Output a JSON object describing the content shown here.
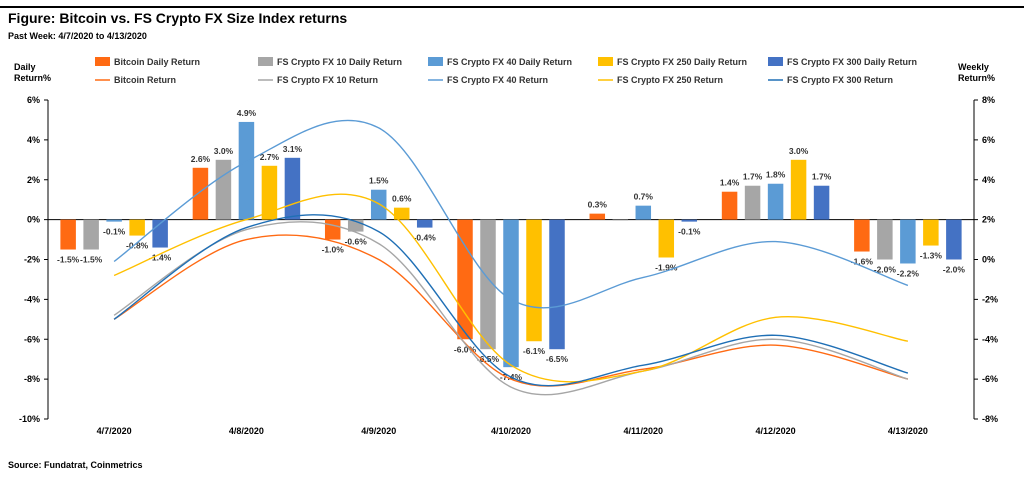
{
  "header": {
    "title": "Figure: Bitcoin vs. FS Crypto FX Size Index returns",
    "subtitle": "Past Week: 4/7/2020 to 4/13/2020"
  },
  "footer": {
    "source": "Source: Fundatrat, Coinmetrics"
  },
  "chart_data": {
    "type": "bar",
    "categories": [
      "4/7/2020",
      "4/8/2020",
      "4/9/2020",
      "4/10/2020",
      "4/11/2020",
      "4/12/2020",
      "4/13/2020"
    ],
    "ylabel_left_line1": "Daily",
    "ylabel_left_line2": "Return%",
    "ylabel_right_line1": "Weekly",
    "ylabel_right_line2": "Return%",
    "ylim_left": [
      -10,
      6
    ],
    "ylim_right": [
      -8,
      8
    ],
    "left_ticks": [
      "6%",
      "4%",
      "2%",
      "0%",
      "-2%",
      "-4%",
      "-6%",
      "-8%",
      "-10%"
    ],
    "right_ticks": [
      "8%",
      "6%",
      "4%",
      "2%",
      "0%",
      "-2%",
      "-4%",
      "-6%",
      "-8%"
    ],
    "grid": false,
    "legend_position": "top",
    "series": [
      {
        "name": "Bitcoin Daily Return",
        "color": "#FF6A13",
        "values": [
          -1.5,
          2.6,
          -1.0,
          -6.0,
          0.3,
          1.4,
          -1.6
        ],
        "labels": [
          "-1.5%",
          "2.6%",
          "-1.0%",
          "-6.0%",
          "0.3%",
          "1.4%",
          "-1.6%"
        ]
      },
      {
        "name": "FS Crypto FX 10 Daily Return",
        "color": "#A6A6A6",
        "values": [
          -1.5,
          3.0,
          -0.6,
          -6.5,
          0.0,
          1.7,
          -2.0
        ],
        "labels": [
          "-1.5%",
          "3.0%",
          "-0.6%",
          "-6.5%",
          "",
          "1.7%",
          "-2.0%"
        ]
      },
      {
        "name": "FS Crypto FX 40 Daily Return",
        "color": "#5B9BD5",
        "values": [
          -0.1,
          4.9,
          1.5,
          -7.4,
          0.7,
          1.8,
          -2.2
        ],
        "labels": [
          "-0.1%",
          "4.9%",
          "1.5%",
          "-7.4%",
          "0.7%",
          "1.8%",
          "-2.2%"
        ]
      },
      {
        "name": "FS Crypto FX 250 Daily Return",
        "color": "#FFC000",
        "values": [
          -0.8,
          2.7,
          0.6,
          -6.1,
          -1.9,
          3.0,
          -1.3
        ],
        "labels": [
          "-0.8%",
          "2.7%",
          "0.6%",
          "-6.1%",
          "-1.9%",
          "3.0%",
          "-1.3%"
        ]
      },
      {
        "name": "FS Crypto FX 300 Daily Return",
        "color": "#4472C4",
        "values": [
          -1.4,
          3.1,
          -0.4,
          -6.5,
          -0.1,
          1.7,
          -2.0
        ],
        "labels": [
          "-1.4%",
          "3.1%",
          "-0.4%",
          "-6.5%",
          "-0.1%",
          "1.7%",
          "-2.0%"
        ]
      }
    ],
    "line_series": [
      {
        "name": "Bitcoin Return",
        "color": "#FF6A13",
        "values": [
          -3.0,
          1.0,
          0.0,
          -6.0,
          -5.5,
          -4.3,
          -6.0
        ]
      },
      {
        "name": "FS Crypto FX 10 Return",
        "color": "#A6A6A6",
        "values": [
          -2.8,
          1.5,
          0.8,
          -6.4,
          -5.6,
          -4.0,
          -6.0
        ]
      },
      {
        "name": "FS Crypto FX 40 Return",
        "color": "#5B9BD5",
        "values": [
          -0.1,
          4.9,
          6.6,
          -2.0,
          -0.9,
          0.9,
          -1.3
        ]
      },
      {
        "name": "FS Crypto FX 250 Return",
        "color": "#FFC000",
        "values": [
          -0.8,
          2.0,
          2.8,
          -5.3,
          -5.6,
          -2.9,
          -4.1
        ]
      },
      {
        "name": "FS Crypto FX 300 Return",
        "color": "#1F6FB5",
        "values": [
          -3.0,
          1.6,
          1.4,
          -5.9,
          -5.3,
          -3.8,
          -5.7
        ]
      }
    ]
  }
}
